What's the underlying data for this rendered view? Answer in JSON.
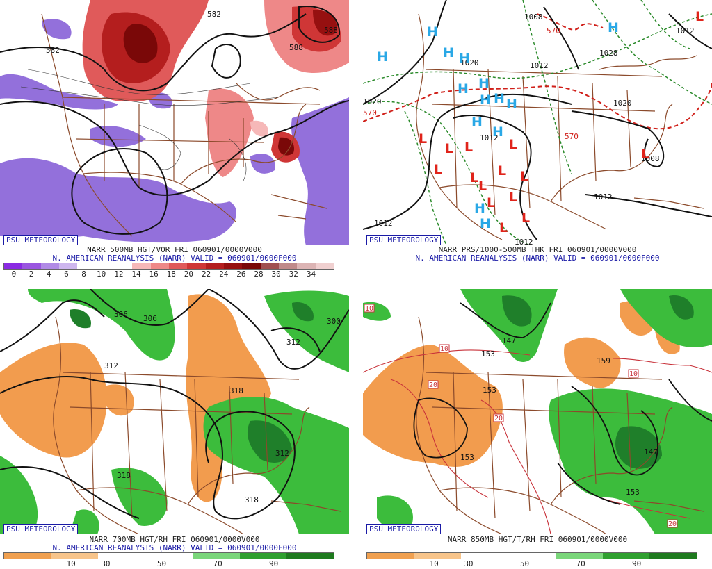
{
  "credit": "PSU METEOROLOGY",
  "panels": [
    {
      "id": "vor500",
      "caption": "NARR 500MB HGT/VOR FRI 060901/0000V000",
      "subcaption": "N. AMERICAN REANALYSIS (NARR) VALID = 060901/0000F000",
      "legend_colors": [
        "#8a2be2",
        "#9a56e0",
        "#b08ae6",
        "#cdb6ee",
        "#ffffff",
        "#ffffff",
        "#ffffff",
        "#f6b8b8",
        "#ee8888",
        "#e05a5a",
        "#cf3636",
        "#b41e1e",
        "#961010",
        "#7a0808",
        "#a05050",
        "#c08a8a",
        "#dcb4b4",
        "#f0d0d0"
      ],
      "legend_ticks": [
        "0",
        "2",
        "4",
        "6",
        "8",
        "10",
        "12",
        "14",
        "16",
        "18",
        "20",
        "22",
        "24",
        "26",
        "28",
        "30",
        "32",
        "34"
      ],
      "contour_labels": [
        "582",
        "582",
        "588",
        "588"
      ]
    },
    {
      "id": "prs",
      "caption": "NARR PRS/1000-500MB THK FRI 060901/0000V000",
      "subcaption": "N. AMERICAN REANALYSIS (NARR) VALID = 060901/0000F000",
      "contour_labels": [
        "1008",
        "1012",
        "1020",
        "1020",
        "1012",
        "1028",
        "1020",
        "1012",
        "1008",
        "1012",
        "1012",
        "1012",
        "570",
        "570",
        "570"
      ],
      "high_symbol": "H",
      "low_symbol": "L"
    },
    {
      "id": "rh700",
      "caption": "NARR 700MB HGT/RH FRI 060901/0000V000",
      "subcaption": "N. AMERICAN REANALYSIS (NARR) VALID = 060901/0000F000",
      "legend_colors": [
        "#f0a050",
        "#f7c48a",
        "#ffffff",
        "#ffffff",
        "#7ad67a",
        "#2fa02f",
        "#1e7a1e"
      ],
      "legend_ticks": [
        "10",
        "30",
        "50",
        "70",
        "90"
      ],
      "contour_labels": [
        "306",
        "306",
        "312",
        "300",
        "312",
        "318",
        "318",
        "312",
        "318"
      ]
    },
    {
      "id": "rh850",
      "caption": "NARR 850MB HGT/T/RH FRI 060901/0000V000",
      "legend_colors": [
        "#f0a050",
        "#f7c48a",
        "#ffffff",
        "#ffffff",
        "#7ad67a",
        "#2fa02f",
        "#1e7a1e"
      ],
      "legend_ticks": [
        "10",
        "30",
        "50",
        "70",
        "90"
      ],
      "contour_labels": [
        "153",
        "147",
        "153",
        "159",
        "153",
        "147",
        "153"
      ],
      "boxed_labels": [
        "10",
        "10",
        "10",
        "20",
        "20",
        "20"
      ]
    }
  ],
  "colors": {
    "land_outline": "#8b4a2b",
    "purple": "#8a64d8",
    "red": "#d9434a",
    "darkred": "#8b0a0a",
    "green": "#3cbc3c",
    "darkgreen": "#1f7f2a",
    "orange": "#f29c4e",
    "high": "#2aa8e6",
    "low": "#e0241b",
    "thickness": "#d0201a",
    "dashgreen": "#2a8a2a"
  }
}
